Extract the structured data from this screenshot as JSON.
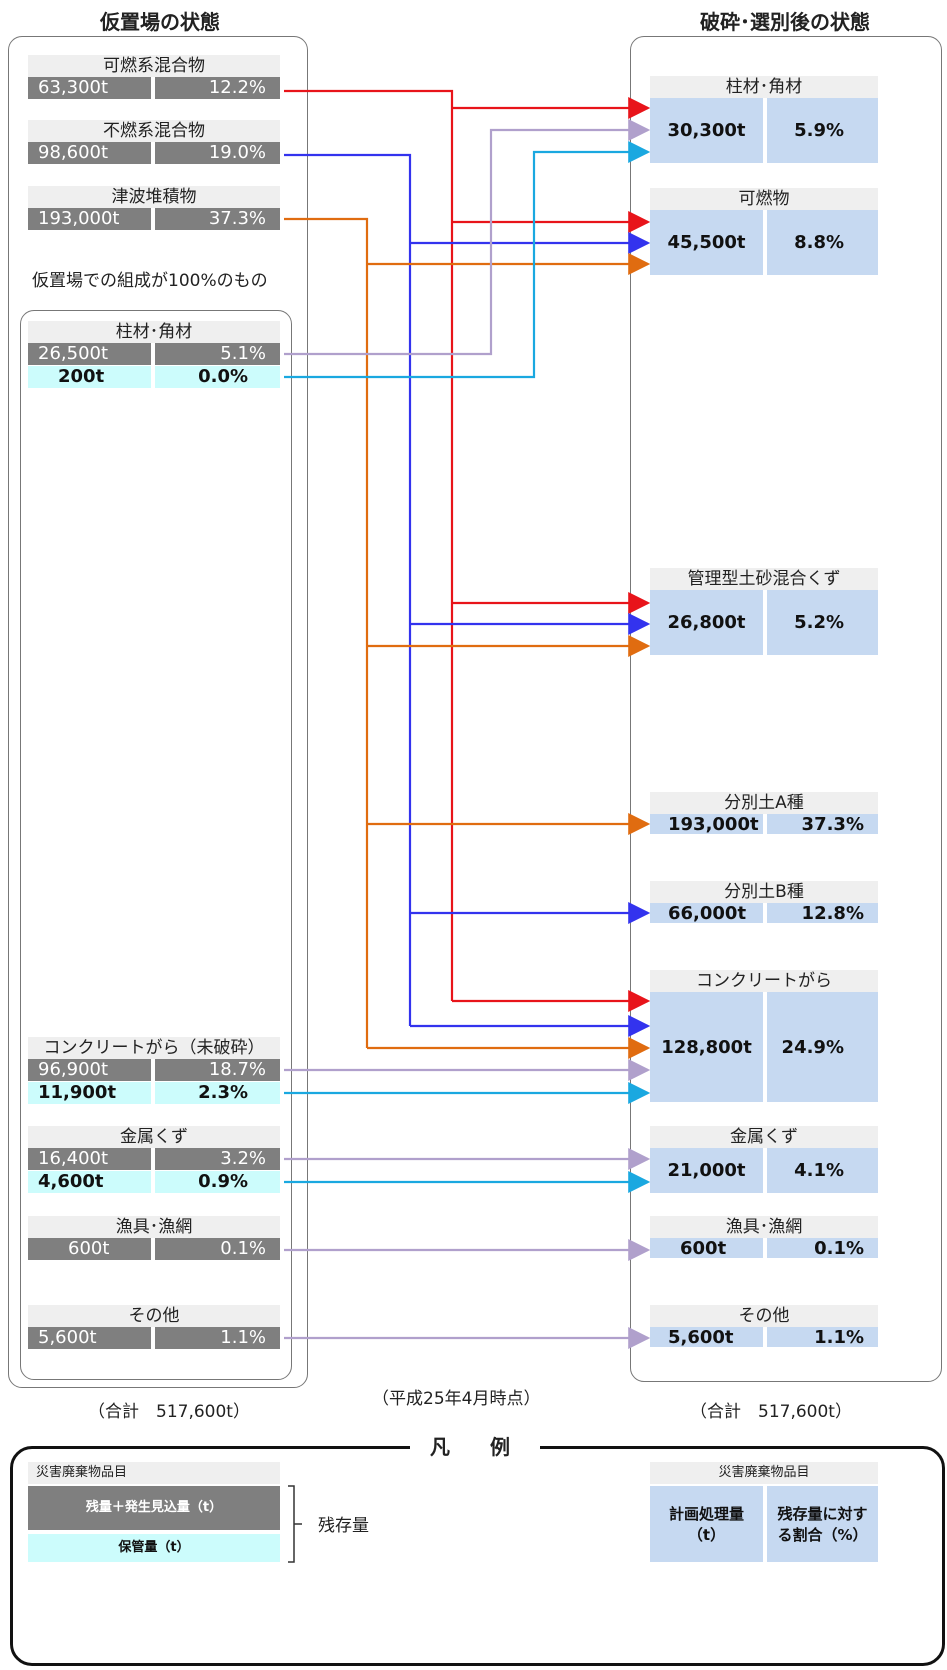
{
  "header": {
    "left_title": "仮置場の状態",
    "right_title": "破砕･選別後の状態"
  },
  "left": {
    "items": [
      {
        "label": "可燃系混合物",
        "ton": "63,300t",
        "pct": "12.2%"
      },
      {
        "label": "不燃系混合物",
        "ton": "98,600t",
        "pct": "19.0%"
      },
      {
        "label": "津波堆積物",
        "ton": "193,000t",
        "pct": "37.3%"
      }
    ],
    "subgroup_caption": "仮置場での組成が100%のもの",
    "pure_items": [
      {
        "label": "柱材･角材",
        "ton": "26,500t",
        "pct": "5.1%",
        "store_ton": "200t",
        "store_pct": "0.0%"
      },
      {
        "label": "コンクリートがら（未破砕）",
        "ton": "96,900t",
        "pct": "18.7%",
        "store_ton": "11,900t",
        "store_pct": "2.3%"
      },
      {
        "label": "金属くず",
        "ton": "16,400t",
        "pct": "3.2%",
        "store_ton": "4,600t",
        "store_pct": "0.9%"
      },
      {
        "label": "漁具･漁網",
        "ton": "600t",
        "pct": "0.1%"
      },
      {
        "label": "その他",
        "ton": "5,600t",
        "pct": "1.1%"
      }
    ],
    "total": "（合計　517,600t）"
  },
  "right": {
    "items": [
      {
        "label": "柱材･角材",
        "ton": "30,300t",
        "pct": "5.9%"
      },
      {
        "label": "可燃物",
        "ton": "45,500t",
        "pct": "8.8%"
      },
      {
        "label": "管理型土砂混合くず",
        "ton": "26,800t",
        "pct": "5.2%"
      },
      {
        "label": "分別土A種",
        "ton": "193,000t",
        "pct": "37.3%"
      },
      {
        "label": "分別土B種",
        "ton": "66,000t",
        "pct": "12.8%"
      },
      {
        "label": "コンクリートがら",
        "ton": "128,800t",
        "pct": "24.9%"
      },
      {
        "label": "金属くず",
        "ton": "21,000t",
        "pct": "4.1%"
      },
      {
        "label": "漁具･漁網",
        "ton": "600t",
        "pct": "0.1%"
      },
      {
        "label": "その他",
        "ton": "5,600t",
        "pct": "1.1%"
      }
    ],
    "total": "（合計　517,600t）"
  },
  "date_note": "（平成25年4月時点）",
  "legend": {
    "title": "凡　例",
    "left_header": "災害廃棄物品目",
    "left_row1": "残量＋発生見込量（t）",
    "left_row2": "保管量（t）",
    "bracket_label": "残存量",
    "right_header": "災害廃棄物品目",
    "right_col1": "計画処理量（t）",
    "right_col2": "残存量に対する割合（%）"
  },
  "colors": {
    "red": "#e8141a",
    "blue": "#3333ee",
    "orange": "#e06c10",
    "lavender": "#b0a0cc",
    "cyan": "#1aa8e0",
    "gray_cell": "#7f7f7f",
    "cyan_cell": "#ccfcfc",
    "blue_cell": "#c6d9f1",
    "header_cell": "#efefef"
  }
}
